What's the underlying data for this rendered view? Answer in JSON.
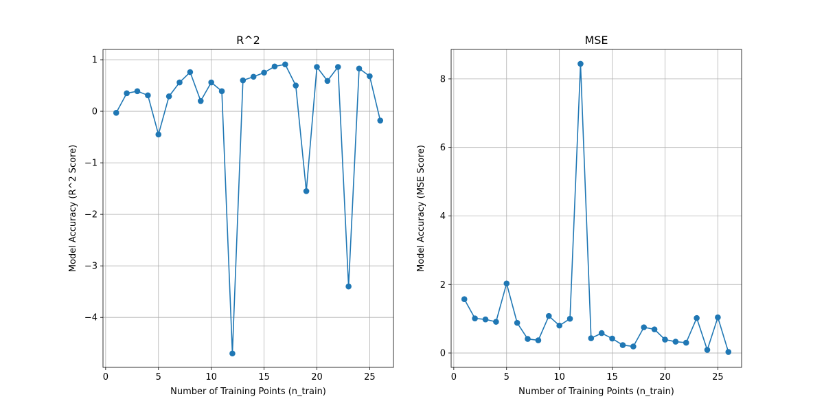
{
  "chart_data": [
    {
      "type": "line",
      "title": "R^2",
      "xlabel": "Number of Training Points (n_train)",
      "ylabel": "Model Accuracy (R^2 Score)",
      "xlim": [
        -0.25,
        27.25
      ],
      "ylim": [
        -4.97,
        1.2
      ],
      "xticks": [
        0,
        5,
        10,
        15,
        20,
        25
      ],
      "yticks": [
        1,
        0,
        -1,
        -2,
        -3,
        -4
      ],
      "ytick_labels": [
        "1",
        "0",
        "−1",
        "−2",
        "−3",
        "−4"
      ],
      "grid": true,
      "color": "#1f77b4",
      "marker": "circle",
      "series": [
        {
          "x": [
            1,
            2,
            3,
            4,
            5,
            6,
            7,
            8,
            9,
            10,
            11,
            12,
            13,
            14,
            15,
            16,
            17,
            18,
            19,
            20,
            21,
            22,
            23,
            24,
            25,
            26
          ],
          "values": [
            -0.03,
            0.35,
            0.39,
            0.31,
            -0.45,
            0.29,
            0.56,
            0.76,
            0.2,
            0.56,
            0.39,
            -4.7,
            0.6,
            0.67,
            0.75,
            0.87,
            0.91,
            0.5,
            -1.55,
            0.86,
            0.59,
            0.86,
            -3.4,
            0.83,
            0.68,
            -0.18
          ]
        }
      ]
    },
    {
      "type": "line",
      "title": "MSE",
      "xlabel": "Number of Training Points (n_train)",
      "ylabel": "Model Accuracy (MSE Score)",
      "xlim": [
        -0.25,
        27.25
      ],
      "ylim": [
        -0.42,
        8.86
      ],
      "xticks": [
        0,
        5,
        10,
        15,
        20,
        25
      ],
      "yticks": [
        0,
        2,
        4,
        6,
        8
      ],
      "ytick_labels": [
        "0",
        "2",
        "4",
        "6",
        "8"
      ],
      "grid": true,
      "color": "#1f77b4",
      "marker": "circle",
      "series": [
        {
          "x": [
            1,
            2,
            3,
            4,
            5,
            6,
            7,
            8,
            9,
            10,
            11,
            12,
            13,
            14,
            15,
            16,
            17,
            18,
            19,
            20,
            21,
            22,
            23,
            24,
            25,
            26
          ],
          "values": [
            1.57,
            1.01,
            0.98,
            0.91,
            2.03,
            0.88,
            0.41,
            0.37,
            1.08,
            0.8,
            1.0,
            8.44,
            0.43,
            0.58,
            0.42,
            0.23,
            0.19,
            0.75,
            0.69,
            0.39,
            0.33,
            0.3,
            1.02,
            0.09,
            1.04,
            0.03
          ]
        }
      ]
    }
  ]
}
